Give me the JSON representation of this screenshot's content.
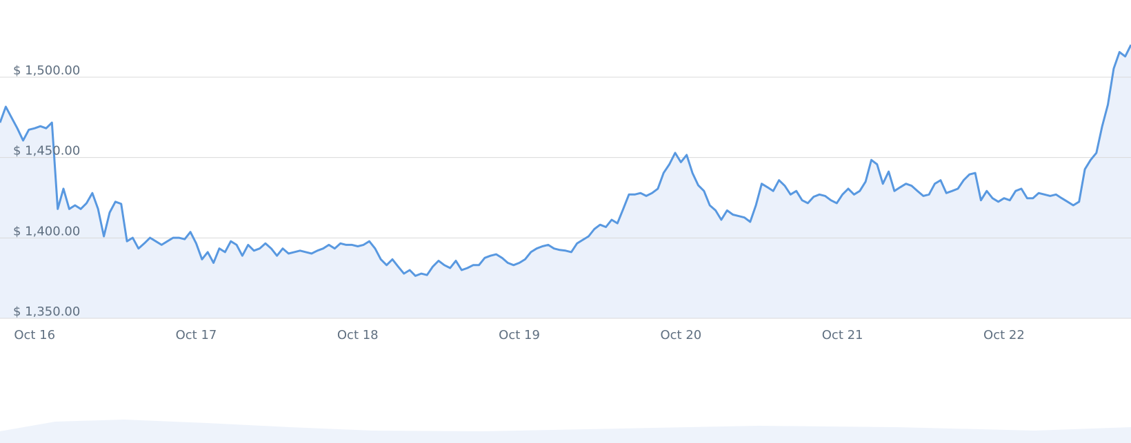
{
  "chart_data": {
    "type": "area",
    "categories": [
      null,
      null,
      null,
      null,
      null,
      null,
      "Oct 16",
      null,
      null,
      null,
      null,
      null,
      null,
      null,
      null,
      null,
      null,
      null,
      null,
      null,
      null,
      null,
      null,
      null,
      null,
      null,
      null,
      null,
      null,
      null,
      null,
      null,
      null,
      null,
      "Oct 17",
      null,
      null,
      null,
      null,
      null,
      null,
      null,
      null,
      null,
      null,
      null,
      null,
      null,
      null,
      null,
      null,
      null,
      null,
      null,
      null,
      null,
      null,
      null,
      null,
      null,
      null,
      null,
      "Oct 18",
      null,
      null,
      null,
      null,
      null,
      null,
      null,
      null,
      null,
      null,
      null,
      null,
      null,
      null,
      null,
      null,
      null,
      null,
      null,
      null,
      null,
      null,
      null,
      null,
      null,
      null,
      null,
      "Oct 19",
      null,
      null,
      null,
      null,
      null,
      null,
      null,
      null,
      null,
      null,
      null,
      null,
      null,
      null,
      null,
      null,
      null,
      null,
      null,
      null,
      null,
      null,
      null,
      null,
      null,
      null,
      null,
      "Oct 20",
      null,
      null,
      null,
      null,
      null,
      null,
      null,
      null,
      null,
      null,
      null,
      null,
      null,
      null,
      null,
      null,
      null,
      null,
      null,
      null,
      null,
      null,
      null,
      null,
      null,
      null,
      null,
      "Oct 21",
      null,
      null,
      null,
      null,
      null,
      null,
      null,
      null,
      null,
      null,
      null,
      null,
      null,
      null,
      null,
      null,
      null,
      null,
      null,
      null,
      null,
      null,
      null,
      null,
      null,
      null,
      null,
      "Oct 22",
      null,
      null,
      null,
      null,
      null,
      null,
      null,
      null,
      null,
      null,
      null,
      null,
      null,
      null,
      null,
      null,
      null,
      null,
      null,
      null,
      null,
      null
    ],
    "values": [
      1471.7,
      1481.6,
      1474.9,
      1468.2,
      1460.6,
      1467.3,
      1468.2,
      1469.5,
      1468.2,
      1471.7,
      1418.0,
      1430.6,
      1418.0,
      1420.3,
      1418.0,
      1421.6,
      1427.9,
      1418.0,
      1401.0,
      1415.8,
      1422.5,
      1421.2,
      1397.9,
      1400.1,
      1393.4,
      1396.6,
      1400.1,
      1397.9,
      1395.7,
      1397.9,
      1400.1,
      1400.1,
      1399.2,
      1403.7,
      1396.6,
      1386.7,
      1391.2,
      1384.5,
      1393.4,
      1391.2,
      1397.9,
      1395.7,
      1388.9,
      1395.7,
      1392.1,
      1393.4,
      1396.6,
      1393.4,
      1388.9,
      1393.4,
      1390.3,
      1391.2,
      1392.1,
      1391.2,
      1390.3,
      1392.1,
      1393.4,
      1395.7,
      1393.4,
      1396.6,
      1395.7,
      1395.7,
      1394.8,
      1395.7,
      1397.9,
      1393.4,
      1386.7,
      1383.1,
      1386.7,
      1382.2,
      1377.8,
      1380.0,
      1376.4,
      1377.8,
      1376.9,
      1382.2,
      1385.8,
      1383.1,
      1381.3,
      1385.8,
      1380.0,
      1381.3,
      1383.1,
      1383.1,
      1387.6,
      1388.9,
      1389.8,
      1387.6,
      1384.5,
      1383.1,
      1384.5,
      1386.7,
      1391.2,
      1393.4,
      1394.8,
      1395.7,
      1393.4,
      1392.5,
      1392.1,
      1391.2,
      1396.6,
      1398.8,
      1401.0,
      1405.5,
      1408.2,
      1406.8,
      1411.3,
      1409.1,
      1418.0,
      1427.0,
      1427.0,
      1427.9,
      1426.1,
      1427.9,
      1430.6,
      1440.4,
      1445.8,
      1452.9,
      1447.1,
      1451.6,
      1440.4,
      1432.8,
      1429.2,
      1420.3,
      1417.1,
      1411.3,
      1417.1,
      1414.5,
      1413.6,
      1412.7,
      1410.0,
      1420.3,
      1433.7,
      1431.5,
      1429.2,
      1435.9,
      1432.4,
      1427.0,
      1429.2,
      1423.4,
      1421.6,
      1425.6,
      1427.0,
      1426.1,
      1423.4,
      1421.6,
      1427.0,
      1430.6,
      1427.0,
      1429.2,
      1435.0,
      1448.5,
      1445.8,
      1433.7,
      1441.3,
      1429.2,
      1431.5,
      1433.7,
      1432.4,
      1429.2,
      1426.1,
      1427.0,
      1433.7,
      1435.9,
      1427.9,
      1429.2,
      1430.6,
      1435.9,
      1439.5,
      1440.4,
      1423.4,
      1429.2,
      1424.7,
      1422.5,
      1424.7,
      1423.4,
      1429.2,
      1430.6,
      1424.7,
      1424.7,
      1427.9,
      1427.0,
      1426.1,
      1427.0,
      1424.7,
      1422.5,
      1420.3,
      1422.5,
      1442.7,
      1448.5,
      1452.9,
      1469.5,
      1482.9,
      1505.3,
      1515.6,
      1512.9,
      1520.1
    ],
    "color": "#5898e0",
    "fill": "#ebf1fb",
    "ylim": [
      1350,
      1548
    ],
    "yticks": [
      {
        "value": 1350,
        "label": "$ 1,350.00"
      },
      {
        "value": 1400,
        "label": "$ 1,400.00"
      },
      {
        "value": 1450,
        "label": "$ 1,450.00"
      },
      {
        "value": 1500,
        "label": "$ 1,500.00"
      }
    ],
    "grid": true
  }
}
